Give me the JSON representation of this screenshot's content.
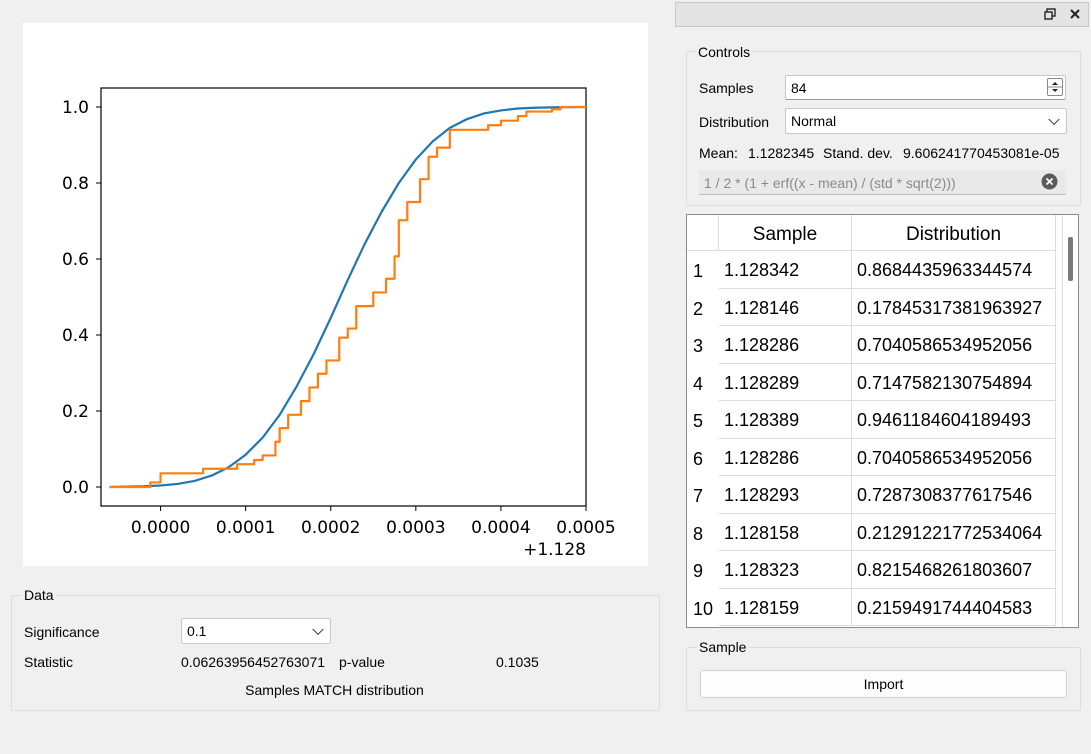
{
  "chart_data": {
    "type": "line",
    "x_offset_label": "+1.128",
    "xlim": [
      -7e-05,
      0.0005
    ],
    "ylim": [
      -0.05,
      1.05
    ],
    "xticks": [
      0.0,
      0.0001,
      0.0002,
      0.0003,
      0.0004,
      0.0005
    ],
    "xtick_labels": [
      "0.0000",
      "0.0001",
      "0.0002",
      "0.0003",
      "0.0004",
      "0.0005"
    ],
    "yticks": [
      0.0,
      0.2,
      0.4,
      0.6,
      0.8,
      1.0
    ],
    "ytick_labels": [
      "0.0",
      "0.2",
      "0.4",
      "0.6",
      "0.8",
      "1.0"
    ],
    "series": [
      {
        "color": "#1f77b4",
        "kind": "smooth",
        "x": [
          -6e-05,
          -4e-05,
          -2e-05,
          0.0,
          2e-05,
          4e-05,
          6e-05,
          8e-05,
          0.0001,
          0.00012,
          0.00014,
          0.00016,
          0.00018,
          0.0002,
          0.00022,
          0.00024,
          0.00026,
          0.00028,
          0.0003,
          0.00032,
          0.00034,
          0.00036,
          0.00038,
          0.0004,
          0.00042,
          0.00044,
          0.00046,
          0.00048,
          0.0005
        ],
        "y": [
          0.0,
          0.001,
          0.002,
          0.004,
          0.008,
          0.016,
          0.03,
          0.052,
          0.085,
          0.13,
          0.19,
          0.265,
          0.35,
          0.445,
          0.545,
          0.64,
          0.725,
          0.8,
          0.862,
          0.91,
          0.945,
          0.968,
          0.983,
          0.991,
          0.996,
          0.998,
          0.999,
          0.9997,
          1.0
        ]
      },
      {
        "color": "#ff7f0e",
        "kind": "step",
        "x": [
          -6e-05,
          -1.2e-05,
          0.0,
          5e-05,
          9e-05,
          0.00011,
          0.00012,
          0.000135,
          0.00014,
          0.00015,
          0.000165,
          0.000175,
          0.000185,
          0.000195,
          0.00021,
          0.00022,
          0.00023,
          0.00025,
          0.000265,
          0.000275,
          0.00028,
          0.00029,
          0.000305,
          0.000315,
          0.000325,
          0.00034,
          0.00037,
          0.000385,
          0.0004,
          0.00042,
          0.00043,
          0.00046,
          0.00047,
          0.0005
        ],
        "y": [
          0.0,
          0.012,
          0.036,
          0.048,
          0.06,
          0.071,
          0.083,
          0.119,
          0.155,
          0.19,
          0.226,
          0.262,
          0.298,
          0.333,
          0.393,
          0.417,
          0.476,
          0.512,
          0.548,
          0.607,
          0.702,
          0.75,
          0.81,
          0.869,
          0.893,
          0.94,
          0.94,
          0.952,
          0.964,
          0.976,
          0.988,
          0.994,
          1.0,
          1.0
        ]
      }
    ]
  },
  "data_group": {
    "title": "Data",
    "significance_label": "Significance",
    "significance_value": "0.1",
    "statistic_label": "Statistic",
    "statistic_value": "0.06263956452763071",
    "pvalue_label": "p-value",
    "pvalue_value": "0.1035",
    "result_text": "Samples MATCH distribution"
  },
  "controls": {
    "title": "Controls",
    "samples_label": "Samples",
    "samples_value": "84",
    "distribution_label": "Distribution",
    "distribution_value": "Normal",
    "mean_label": "Mean:",
    "mean_value": "1.1282345",
    "std_label": "Stand. dev.",
    "std_value": "9.606241770453081e-05",
    "formula_placeholder": "1 / 2 * (1 + erf((x - mean) / (std * sqrt(2)))"
  },
  "table": {
    "headers": [
      "Sample",
      "Distribution"
    ],
    "rows": [
      {
        "n": "1",
        "sample": "1.128342",
        "dist": "0.8684435963344574"
      },
      {
        "n": "2",
        "sample": "1.128146",
        "dist": "0.17845317381963927"
      },
      {
        "n": "3",
        "sample": "1.128286",
        "dist": "0.7040586534952056"
      },
      {
        "n": "4",
        "sample": "1.128289",
        "dist": "0.7147582130754894"
      },
      {
        "n": "5",
        "sample": "1.128389",
        "dist": "0.9461184604189493"
      },
      {
        "n": "6",
        "sample": "1.128286",
        "dist": "0.7040586534952056"
      },
      {
        "n": "7",
        "sample": "1.128293",
        "dist": "0.7287308377617546"
      },
      {
        "n": "8",
        "sample": "1.128158",
        "dist": "0.21291221772534064"
      },
      {
        "n": "9",
        "sample": "1.128323",
        "dist": "0.8215468261803607"
      },
      {
        "n": "10",
        "sample": "1.128159",
        "dist": "0.2159491744404583"
      }
    ]
  },
  "sample_group": {
    "title": "Sample",
    "import_label": "Import"
  }
}
